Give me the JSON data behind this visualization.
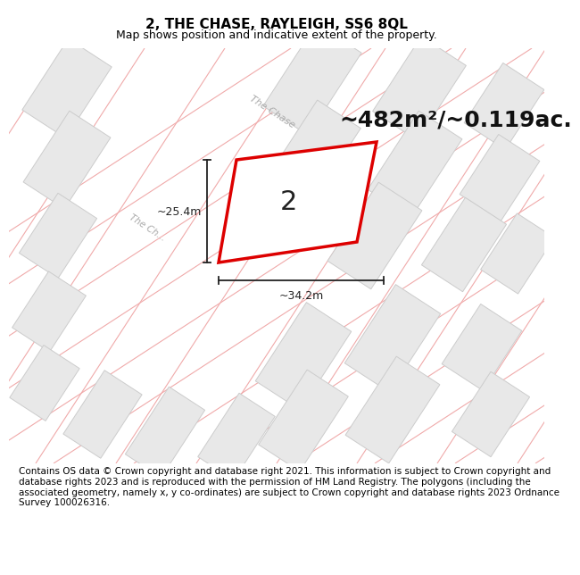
{
  "title": "2, THE CHASE, RAYLEIGH, SS6 8QL",
  "subtitle": "Map shows position and indicative extent of the property.",
  "area_text": "~482m²/~0.119ac.",
  "plot_number": "2",
  "dim_width": "~34.2m",
  "dim_height": "~25.4m",
  "bg_color": "#ffffff",
  "map_bg": "#ffffff",
  "plot_fill": "#ffffff",
  "plot_edge_color": "#dd0000",
  "road_line_color": "#f0aaaa",
  "building_fill": "#e8e8e8",
  "building_edge": "#cccccc",
  "footnote": "Contains OS data © Crown copyright and database right 2021. This information is subject to Crown copyright and database rights 2023 and is reproduced with the permission of HM Land Registry. The polygons (including the associated geometry, namely x, y co-ordinates) are subject to Crown copyright and database rights 2023 Ordnance Survey 100026316.",
  "title_fontsize": 11,
  "subtitle_fontsize": 9,
  "area_fontsize": 18,
  "footnote_fontsize": 7.5,
  "road_label_color": "#aaaaaa",
  "dim_line_color": "#222222",
  "plot_label_color": "#222222"
}
